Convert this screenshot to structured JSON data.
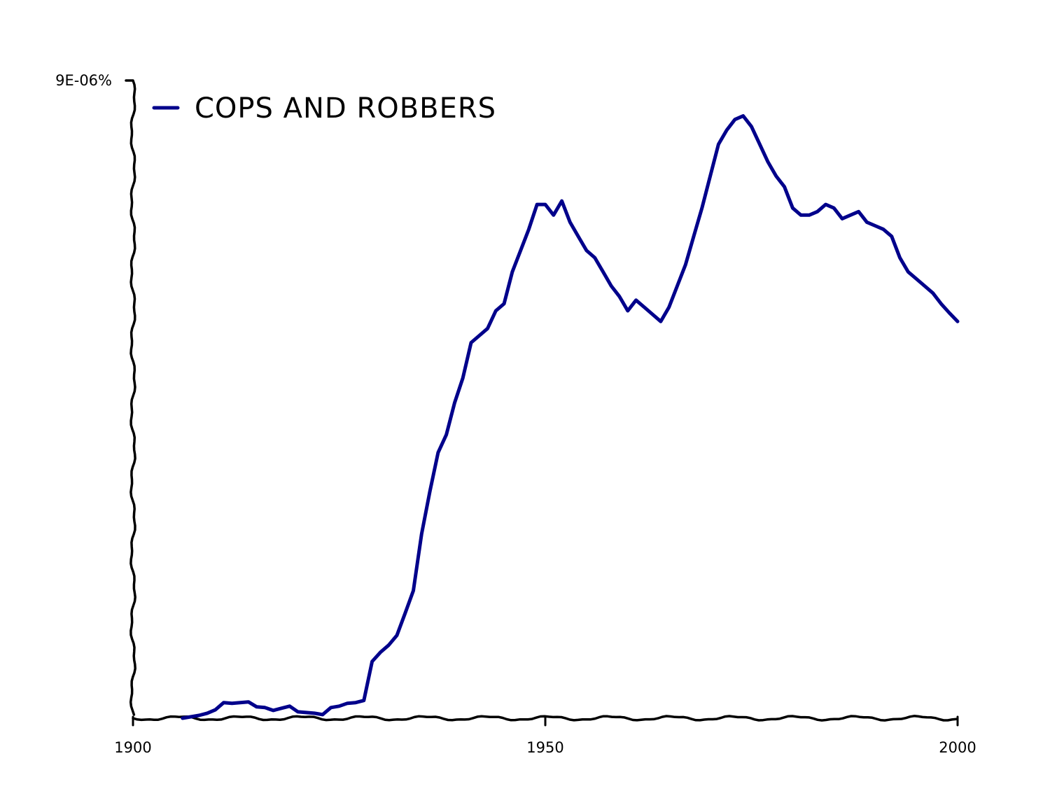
{
  "chart_data": {
    "type": "line",
    "x_ticks": [
      1900,
      1950,
      2000
    ],
    "y_ticks": [
      "9E-06%"
    ],
    "xlim": [
      1900,
      2000
    ],
    "ylim": [
      0,
      9e-06
    ],
    "xlabel": "",
    "ylabel": "",
    "legend_position": "top-left",
    "grid": false,
    "series": [
      {
        "name": "COPS AND ROBBERS",
        "color": "#00008b",
        "points": [
          [
            1906,
            0.0
          ],
          [
            1907,
            2e-08
          ],
          [
            1908,
            4e-08
          ],
          [
            1909,
            7e-08
          ],
          [
            1910,
            1.2e-07
          ],
          [
            1911,
            2.2e-07
          ],
          [
            1912,
            2.1e-07
          ],
          [
            1913,
            2.2e-07
          ],
          [
            1914,
            2.3e-07
          ],
          [
            1915,
            1.6e-07
          ],
          [
            1916,
            1.5e-07
          ],
          [
            1917,
            1.1e-07
          ],
          [
            1918,
            1.4e-07
          ],
          [
            1919,
            1.7e-07
          ],
          [
            1920,
            9e-08
          ],
          [
            1921,
            8e-08
          ],
          [
            1922,
            7e-08
          ],
          [
            1923,
            5e-08
          ],
          [
            1924,
            1.5e-07
          ],
          [
            1925,
            1.7e-07
          ],
          [
            1926,
            2.1e-07
          ],
          [
            1927,
            2.2e-07
          ],
          [
            1928,
            2.5e-07
          ],
          [
            1929,
            8e-07
          ],
          [
            1930,
            9.3e-07
          ],
          [
            1931,
            1.03e-06
          ],
          [
            1932,
            1.17e-06
          ],
          [
            1933,
            1.48e-06
          ],
          [
            1934,
            1.8e-06
          ],
          [
            1935,
            2.6e-06
          ],
          [
            1936,
            3.2e-06
          ],
          [
            1937,
            3.75e-06
          ],
          [
            1938,
            4e-06
          ],
          [
            1939,
            4.45e-06
          ],
          [
            1940,
            4.8e-06
          ],
          [
            1941,
            5.3e-06
          ],
          [
            1942,
            5.4e-06
          ],
          [
            1943,
            5.5e-06
          ],
          [
            1944,
            5.75e-06
          ],
          [
            1945,
            5.85e-06
          ],
          [
            1946,
            6.3e-06
          ],
          [
            1947,
            6.6e-06
          ],
          [
            1948,
            6.9e-06
          ],
          [
            1949,
            7.25e-06
          ],
          [
            1950,
            7.25e-06
          ],
          [
            1951,
            7.1e-06
          ],
          [
            1952,
            7.3e-06
          ],
          [
            1953,
            7e-06
          ],
          [
            1954,
            6.8e-06
          ],
          [
            1955,
            6.6e-06
          ],
          [
            1956,
            6.5e-06
          ],
          [
            1957,
            6.3e-06
          ],
          [
            1958,
            6.1e-06
          ],
          [
            1959,
            5.95e-06
          ],
          [
            1960,
            5.75e-06
          ],
          [
            1961,
            5.9e-06
          ],
          [
            1962,
            5.8e-06
          ],
          [
            1963,
            5.7e-06
          ],
          [
            1964,
            5.6e-06
          ],
          [
            1965,
            5.8e-06
          ],
          [
            1966,
            6.1e-06
          ],
          [
            1967,
            6.4e-06
          ],
          [
            1968,
            6.8e-06
          ],
          [
            1969,
            7.2e-06
          ],
          [
            1970,
            7.65e-06
          ],
          [
            1971,
            8.1e-06
          ],
          [
            1972,
            8.3e-06
          ],
          [
            1973,
            8.45e-06
          ],
          [
            1974,
            8.5e-06
          ],
          [
            1975,
            8.35e-06
          ],
          [
            1976,
            8.1e-06
          ],
          [
            1977,
            7.85e-06
          ],
          [
            1978,
            7.65e-06
          ],
          [
            1979,
            7.5e-06
          ],
          [
            1980,
            7.2e-06
          ],
          [
            1981,
            7.1e-06
          ],
          [
            1982,
            7.1e-06
          ],
          [
            1983,
            7.15e-06
          ],
          [
            1984,
            7.25e-06
          ],
          [
            1985,
            7.2e-06
          ],
          [
            1986,
            7.05e-06
          ],
          [
            1987,
            7.1e-06
          ],
          [
            1988,
            7.15e-06
          ],
          [
            1989,
            7e-06
          ],
          [
            1990,
            6.95e-06
          ],
          [
            1991,
            6.9e-06
          ],
          [
            1992,
            6.8e-06
          ],
          [
            1993,
            6.5e-06
          ],
          [
            1994,
            6.3e-06
          ],
          [
            1995,
            6.2e-06
          ],
          [
            1996,
            6.1e-06
          ],
          [
            1997,
            6e-06
          ],
          [
            1998,
            5.85e-06
          ],
          [
            1999,
            5.72e-06
          ],
          [
            2000,
            5.6e-06
          ]
        ]
      }
    ]
  }
}
